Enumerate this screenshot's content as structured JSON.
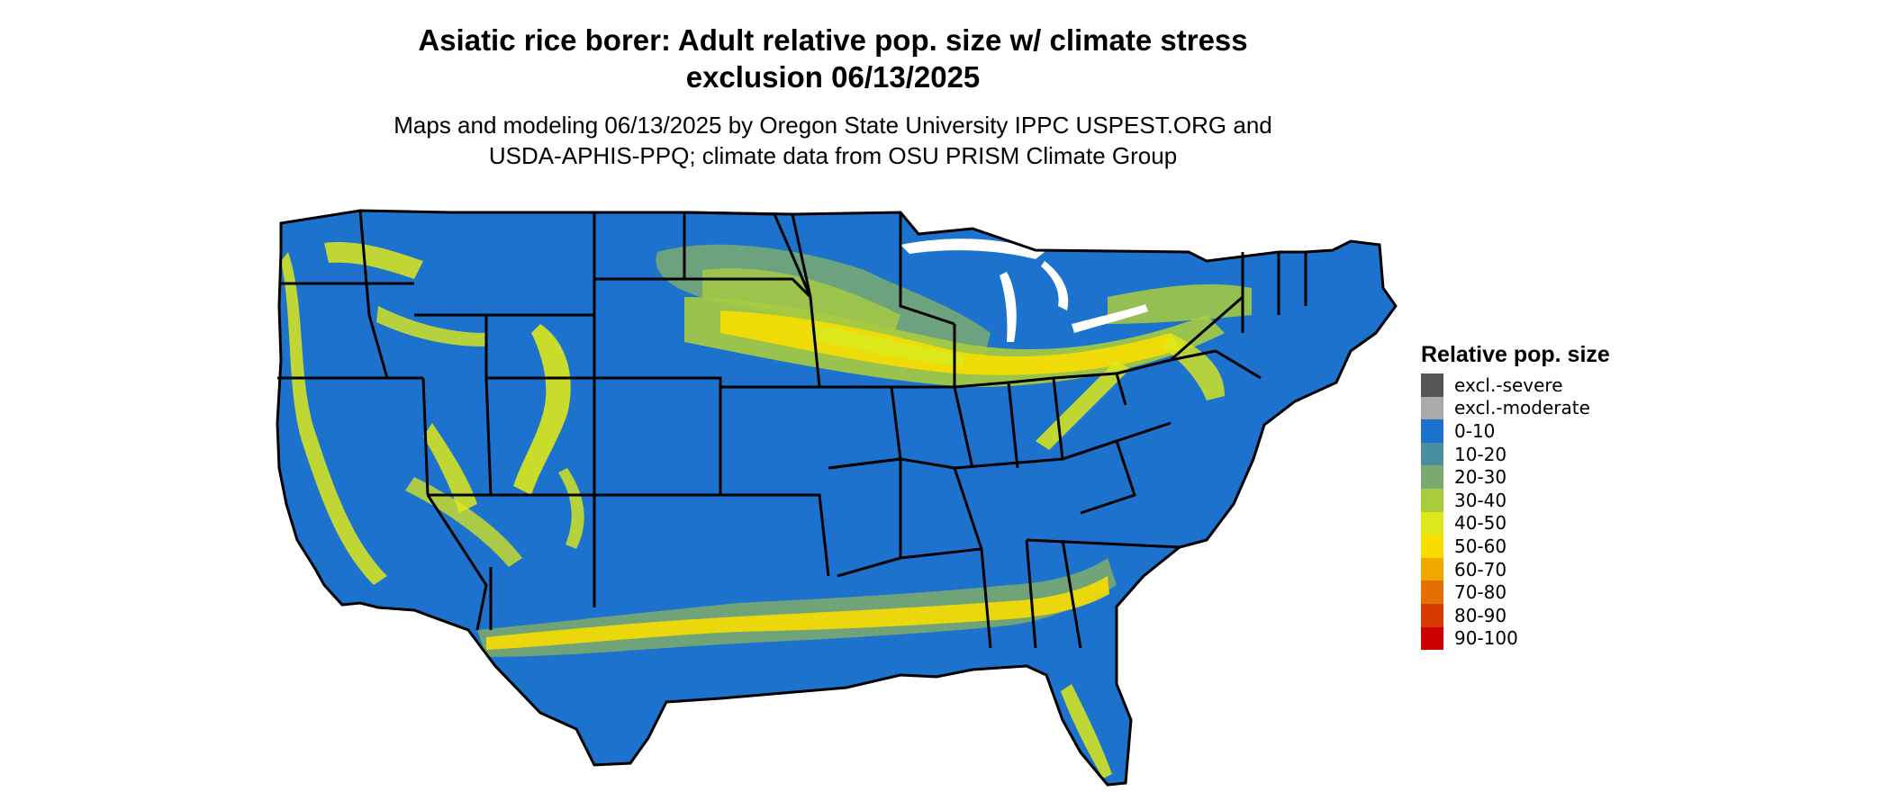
{
  "title": {
    "line1": "Asiatic rice borer: Adult relative pop. size w/ climate stress",
    "line2": "exclusion 06/13/2025"
  },
  "subtitle": {
    "line1": "Maps and modeling 06/13/2025 by Oregon State University IPPC USPEST.ORG and",
    "line2": "USDA-APHIS-PPQ; climate data from OSU PRISM Climate Group"
  },
  "legend": {
    "title": "Relative pop. size",
    "items": [
      {
        "label": "excl.-severe",
        "color": "#555555"
      },
      {
        "label": "excl.-moderate",
        "color": "#aaaaaa"
      },
      {
        "label": "0-10",
        "color": "#1c72cc"
      },
      {
        "label": "10-20",
        "color": "#4a8fa0"
      },
      {
        "label": "20-30",
        "color": "#7aaa6f"
      },
      {
        "label": "30-40",
        "color": "#a9cc3f"
      },
      {
        "label": "40-50",
        "color": "#dde81a"
      },
      {
        "label": "50-60",
        "color": "#f7de00"
      },
      {
        "label": "60-70",
        "color": "#f0a800"
      },
      {
        "label": "70-80",
        "color": "#e56f00"
      },
      {
        "label": "80-90",
        "color": "#d93a00"
      },
      {
        "label": "90-100",
        "color": "#cc0000"
      }
    ]
  },
  "map": {
    "region": "Contiguous United States",
    "base_color": "#1c72cc",
    "boundary_color": "#000000"
  }
}
